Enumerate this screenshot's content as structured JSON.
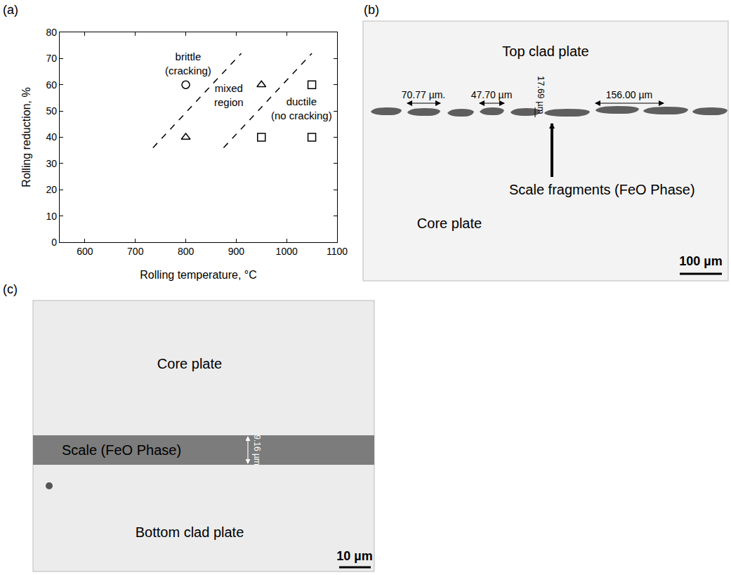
{
  "chart_data": {
    "type": "scatter",
    "panel_letter": "(a)",
    "x_label": "Rolling temperature, °C",
    "y_label": "Rolling reduction, %",
    "xlim": [
      550,
      1100
    ],
    "xticks": [
      600,
      700,
      800,
      900,
      1000,
      1100
    ],
    "ylim": [
      0,
      80
    ],
    "yticks": [
      0,
      10,
      20,
      30,
      40,
      50,
      60,
      70,
      80
    ],
    "grid": false,
    "series": [
      {
        "marker": "circle",
        "color": "#000000",
        "x": [
          800
        ],
        "values": [
          60
        ]
      },
      {
        "marker": "triangle",
        "color": "#000000",
        "x": [
          800,
          950
        ],
        "values": [
          40,
          60
        ]
      },
      {
        "marker": "square",
        "color": "#000000",
        "x": [
          950,
          1050,
          1050
        ],
        "values": [
          40,
          40,
          60
        ]
      }
    ],
    "boundaries": [
      {
        "line_style": "dashed",
        "color": "#000000",
        "x": [
          735,
          910
        ],
        "values": [
          36,
          72
        ]
      },
      {
        "line_style": "dashed",
        "color": "#000000",
        "x": [
          875,
          1050
        ],
        "values": [
          36,
          72
        ]
      }
    ],
    "annotations": [
      {
        "lines": [
          "brittle",
          "(cracking)"
        ],
        "x": 805,
        "y": 68
      },
      {
        "lines": [
          "mixed",
          "region"
        ],
        "x": 885,
        "y": 56
      },
      {
        "lines": [
          "ductile",
          "(no cracking)"
        ],
        "x": 1030,
        "y": 51
      }
    ]
  },
  "micrographs": [
    {
      "panel_letter": "(b)",
      "labels": {
        "top": "Top clad plate",
        "bottom": "Core plate",
        "pointer": "Scale fragments (FeO Phase)"
      },
      "measurements": [
        "70.77 µm.",
        "47.70 µm",
        "17.69 µm",
        "156.00 µm"
      ],
      "scale_bar": "100 µm"
    },
    {
      "panel_letter": "(c)",
      "labels": {
        "top": "Core plate",
        "band": "Scale (FeO Phase)",
        "bottom": "Bottom clad plate"
      },
      "measurements": [
        "9.16 µm"
      ],
      "scale_bar": "10 µm"
    }
  ]
}
